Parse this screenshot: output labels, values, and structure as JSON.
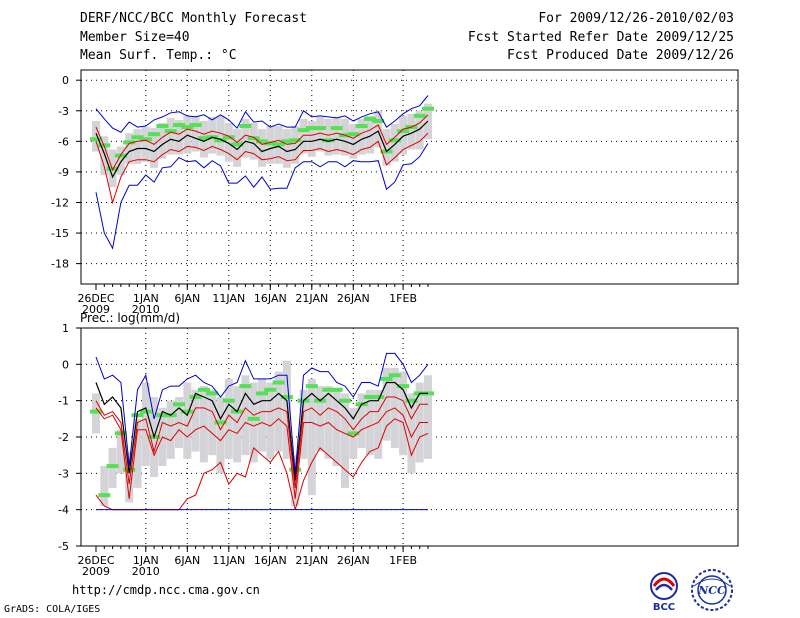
{
  "header": {
    "title": "DERF/NCC/BCC Monthly Forecast",
    "member_size": "Member Size=40",
    "variable": "Mean Surf. Temp.: °C",
    "period": "For 2009/12/26-2010/02/03",
    "started": "Fcst Started Refer Date 2009/12/25",
    "produced": "Fcst Produced Date 2009/12/26"
  },
  "footer": {
    "url": "http://cmdp.ncc.cma.gov.cn",
    "credit": "GrADS: COLA/IGES",
    "logo_bcc": "BCC",
    "logo_ncc": "NCC"
  },
  "colors": {
    "ensemble_mean": "#000000",
    "spread_inner": "#dd0000",
    "spread_outer": "#0000cc",
    "box": "#d4d4d8",
    "median": "#55e055",
    "grid": "#000000"
  },
  "chart_data": [
    {
      "type": "line",
      "title": "Mean Surf. Temp.: °C",
      "x_labels": [
        {
          "day": 0,
          "label": "26DEC",
          "sub": "2009"
        },
        {
          "day": 6,
          "label": "1JAN",
          "sub": "2010"
        },
        {
          "day": 11,
          "label": "6JAN",
          "sub": ""
        },
        {
          "day": 16,
          "label": "11JAN",
          "sub": ""
        },
        {
          "day": 21,
          "label": "16JAN",
          "sub": ""
        },
        {
          "day": 26,
          "label": "21JAN",
          "sub": ""
        },
        {
          "day": 31,
          "label": "26JAN",
          "sub": ""
        },
        {
          "day": 37,
          "label": "1FEB",
          "sub": ""
        }
      ],
      "ylim": [
        -20,
        1
      ],
      "yticks": [
        0,
        -3,
        -6,
        -9,
        -12,
        -15,
        -18
      ],
      "series": [
        {
          "name": "mean",
          "values": [
            -5.2,
            -7.2,
            -9.5,
            -8.0,
            -7.0,
            -6.7,
            -6.7,
            -7.0,
            -6.3,
            -5.8,
            -6.0,
            -5.4,
            -5.7,
            -6.0,
            -5.6,
            -5.8,
            -6.2,
            -6.8,
            -6.0,
            -6.2,
            -7.0,
            -6.7,
            -6.5,
            -7.0,
            -6.8,
            -6.0,
            -6.0,
            -5.8,
            -6.0,
            -5.8,
            -6.0,
            -6.3,
            -5.8,
            -5.5,
            -5.0,
            -7.0,
            -6.3,
            -5.5,
            -5.2,
            -4.8,
            -4.0
          ]
        },
        {
          "name": "red_upper",
          "values": [
            -4.6,
            -6.5,
            -8.8,
            -7.3,
            -6.2,
            -6.0,
            -5.9,
            -6.3,
            -5.6,
            -5.1,
            -5.3,
            -4.8,
            -5.0,
            -5.3,
            -5.0,
            -5.2,
            -5.5,
            -6.1,
            -5.4,
            -5.6,
            -6.3,
            -6.1,
            -5.9,
            -6.3,
            -6.2,
            -5.4,
            -5.4,
            -5.2,
            -5.4,
            -5.2,
            -5.4,
            -5.7,
            -5.2,
            -4.9,
            -4.4,
            -6.3,
            -5.6,
            -4.8,
            -4.6,
            -4.2,
            -3.4
          ]
        },
        {
          "name": "red_lower",
          "values": [
            -6.0,
            -8.5,
            -12.0,
            -9.5,
            -8.0,
            -7.8,
            -7.8,
            -8.0,
            -7.3,
            -6.8,
            -7.0,
            -6.5,
            -6.6,
            -6.9,
            -6.5,
            -6.8,
            -7.2,
            -7.8,
            -7.0,
            -7.2,
            -7.8,
            -7.7,
            -7.5,
            -7.9,
            -7.8,
            -6.9,
            -6.9,
            -6.7,
            -7.0,
            -6.8,
            -7.0,
            -7.3,
            -6.8,
            -6.6,
            -6.0,
            -8.3,
            -7.6,
            -6.8,
            -6.4,
            -6.0,
            -5.2
          ]
        },
        {
          "name": "blue_upper",
          "values": [
            -2.8,
            -3.8,
            -4.7,
            -5.1,
            -4.1,
            -4.6,
            -4.5,
            -3.9,
            -3.6,
            -3.2,
            -3.1,
            -3.5,
            -3.6,
            -3.4,
            -3.9,
            -3.4,
            -3.9,
            -4.7,
            -3.1,
            -4.1,
            -4.0,
            -4.6,
            -4.3,
            -4.6,
            -4.6,
            -3.0,
            -3.6,
            -3.5,
            -3.6,
            -3.7,
            -3.5,
            -4.0,
            -3.6,
            -3.3,
            -3.1,
            -4.6,
            -4.0,
            -3.3,
            -2.8,
            -2.5,
            -1.5
          ]
        },
        {
          "name": "blue_lower",
          "values": [
            -11.0,
            -15.0,
            -16.5,
            -12.0,
            -10.3,
            -10.3,
            -9.3,
            -10.0,
            -8.6,
            -8.5,
            -7.6,
            -8.0,
            -7.9,
            -8.6,
            -7.9,
            -8.4,
            -10.1,
            -10.1,
            -9.4,
            -10.5,
            -9.5,
            -10.7,
            -10.6,
            -10.6,
            -8.6,
            -8.0,
            -8.0,
            -8.5,
            -8.0,
            -8.0,
            -8.5,
            -7.9,
            -8.0,
            -8.0,
            -7.9,
            -10.7,
            -10.0,
            -8.3,
            -8.2,
            -7.5,
            -6.2
          ]
        },
        {
          "name": "box_top",
          "values": [
            -4.0,
            -5.5,
            -6.8,
            -6.5,
            -5.2,
            -4.8,
            -4.6,
            -4.7,
            -4.2,
            -3.7,
            -3.9,
            -3.5,
            -3.5,
            -4.0,
            -3.6,
            -3.5,
            -4.2,
            -4.8,
            -3.8,
            -4.2,
            -4.8,
            -4.5,
            -4.5,
            -4.8,
            -4.5,
            -3.8,
            -4.0,
            -3.6,
            -3.8,
            -3.6,
            -3.8,
            -4.3,
            -3.8,
            -3.5,
            -3.0,
            -4.8,
            -4.3,
            -3.5,
            -3.3,
            -3.0,
            -2.3
          ]
        },
        {
          "name": "box_bottom",
          "values": [
            -7.0,
            -9.3,
            -10.5,
            -9.3,
            -8.2,
            -8.2,
            -8.0,
            -8.6,
            -7.7,
            -7.3,
            -7.3,
            -7.2,
            -7.0,
            -7.6,
            -7.2,
            -7.4,
            -8.0,
            -8.5,
            -7.6,
            -7.8,
            -8.5,
            -8.2,
            -8.2,
            -8.6,
            -8.2,
            -7.2,
            -7.5,
            -7.0,
            -7.4,
            -7.3,
            -7.4,
            -7.7,
            -7.3,
            -7.2,
            -6.6,
            -8.4,
            -8.0,
            -7.3,
            -6.8,
            -6.8,
            -5.8
          ]
        },
        {
          "name": "median",
          "values": [
            -5.8,
            -6.4,
            -8.7,
            -7.4,
            -6.1,
            -5.6,
            -5.8,
            -5.3,
            -4.5,
            -5.0,
            -4.4,
            -4.6,
            -4.4,
            -5.7,
            -5.6,
            -5.9,
            -5.6,
            -6.3,
            -4.5,
            -5.7,
            -6.0,
            -6.2,
            -6.3,
            -6.0,
            -5.9,
            -4.9,
            -4.7,
            -4.7,
            -5.9,
            -4.7,
            -5.4,
            -5.3,
            -4.5,
            -3.8,
            -4.0,
            -7.0,
            -5.9,
            -5.0,
            -4.6,
            -3.5,
            -2.8
          ]
        }
      ]
    },
    {
      "type": "line",
      "title": "Prec.: log(mm/d)",
      "x_labels": [
        {
          "day": 0,
          "label": "26DEC",
          "sub": "2009"
        },
        {
          "day": 6,
          "label": "1JAN",
          "sub": "2010"
        },
        {
          "day": 11,
          "label": "6JAN",
          "sub": ""
        },
        {
          "day": 16,
          "label": "11JAN",
          "sub": ""
        },
        {
          "day": 21,
          "label": "16JAN",
          "sub": ""
        },
        {
          "day": 26,
          "label": "21JAN",
          "sub": ""
        },
        {
          "day": 31,
          "label": "26JAN",
          "sub": ""
        },
        {
          "day": 37,
          "label": "1FEB",
          "sub": ""
        }
      ],
      "ylim": [
        -5,
        1
      ],
      "yticks": [
        1,
        0,
        -1,
        -2,
        -3,
        -4,
        -5
      ],
      "series": [
        {
          "name": "mean",
          "values": [
            -0.5,
            -1.1,
            -0.9,
            -1.2,
            -3.0,
            -1.3,
            -1.2,
            -2.0,
            -1.3,
            -1.4,
            -1.2,
            -1.4,
            -0.8,
            -0.9,
            -1.0,
            -1.5,
            -1.1,
            -1.3,
            -0.8,
            -1.1,
            -1.0,
            -1.0,
            -0.8,
            -1.0,
            -3.2,
            -1.0,
            -0.8,
            -1.0,
            -0.8,
            -1.0,
            -1.2,
            -1.5,
            -1.1,
            -1.0,
            -1.0,
            -0.5,
            -0.5,
            -0.7,
            -1.2,
            -0.8,
            -0.8
          ]
        },
        {
          "name": "red_upper",
          "values": [
            -1.0,
            -1.4,
            -1.3,
            -1.6,
            -3.3,
            -1.6,
            -1.5,
            -2.4,
            -1.6,
            -1.7,
            -1.6,
            -1.7,
            -1.2,
            -1.2,
            -1.3,
            -1.8,
            -1.4,
            -1.6,
            -1.2,
            -1.4,
            -1.3,
            -1.3,
            -1.2,
            -1.3,
            -3.4,
            -1.3,
            -1.2,
            -1.4,
            -1.2,
            -1.3,
            -1.5,
            -1.8,
            -1.5,
            -1.3,
            -1.3,
            -0.9,
            -0.9,
            -1.0,
            -1.5,
            -1.1,
            -1.1
          ]
        },
        {
          "name": "red_lower",
          "values": [
            -1.2,
            -1.5,
            -1.4,
            -1.8,
            -3.7,
            -1.8,
            -1.8,
            -2.5,
            -2.0,
            -2.1,
            -1.8,
            -2.0,
            -1.8,
            -1.7,
            -1.9,
            -2.1,
            -1.8,
            -1.9,
            -1.6,
            -1.7,
            -1.6,
            -1.7,
            -1.5,
            -1.7,
            -3.7,
            -1.6,
            -1.6,
            -1.7,
            -1.6,
            -1.8,
            -1.9,
            -2.0,
            -1.8,
            -1.7,
            -1.6,
            -1.3,
            -1.2,
            -1.4,
            -2.0,
            -1.6,
            -1.6
          ]
        },
        {
          "name": "blue_upper",
          "values": [
            0.2,
            -0.4,
            -0.3,
            -0.5,
            -2.8,
            -0.7,
            -0.3,
            -1.5,
            -0.7,
            -0.6,
            -0.6,
            -0.4,
            -0.3,
            -0.5,
            -0.6,
            -0.9,
            -0.6,
            -0.5,
            0.1,
            -0.4,
            -0.4,
            -0.4,
            -0.3,
            -0.3,
            -3.0,
            -0.3,
            -0.1,
            -0.2,
            -0.2,
            -0.5,
            -0.6,
            -0.9,
            -0.5,
            -0.5,
            -0.6,
            0.3,
            0.3,
            0.0,
            -0.5,
            -0.3,
            0.0
          ]
        },
        {
          "name": "box_top",
          "values": [
            -0.8,
            -2.8,
            -2.3,
            -1.8,
            -2.4,
            -1.5,
            -0.5,
            -0.9,
            -1.2,
            -1.0,
            -0.9,
            -0.5,
            -0.7,
            -0.6,
            -0.7,
            -0.9,
            -0.4,
            -0.6,
            -0.3,
            -0.5,
            -0.4,
            -0.5,
            -0.2,
            0.1,
            -2.5,
            -0.7,
            -0.4,
            -0.6,
            -0.6,
            -0.7,
            -0.8,
            -1.2,
            -0.8,
            -0.7,
            -0.7,
            -0.1,
            -0.1,
            -0.2,
            -0.8,
            -0.5,
            -0.3
          ]
        },
        {
          "name": "box_bottom",
          "values": [
            -1.9,
            -3.9,
            -3.4,
            -3.0,
            -3.8,
            -3.4,
            -2.8,
            -3.1,
            -2.8,
            -2.6,
            -2.3,
            -2.6,
            -2.4,
            -2.7,
            -2.5,
            -3.0,
            -2.6,
            -2.7,
            -2.5,
            -2.7,
            -2.4,
            -2.6,
            -2.4,
            -2.6,
            -3.9,
            -2.6,
            -3.6,
            -2.4,
            -2.6,
            -2.8,
            -3.4,
            -2.6,
            -2.3,
            -2.5,
            -2.6,
            -2.1,
            -2.3,
            -2.5,
            -3.0,
            -2.7,
            -2.6
          ]
        },
        {
          "name": "median",
          "values": [
            -1.3,
            -3.6,
            -2.8,
            -1.9,
            -2.9,
            -1.4,
            -1.3,
            -2.0,
            -1.4,
            -1.4,
            -1.1,
            -1.3,
            -0.9,
            -0.7,
            -0.8,
            -1.6,
            -1.0,
            -1.3,
            -0.6,
            -1.5,
            -0.8,
            -0.7,
            -0.5,
            -0.9,
            -2.9,
            -1.0,
            -0.6,
            -1.0,
            -0.7,
            -0.7,
            -1.0,
            -1.9,
            -1.1,
            -0.9,
            -0.9,
            -0.4,
            -0.3,
            -0.6,
            -1.0,
            -0.8,
            -0.8
          ]
        }
      ],
      "reference_lines": [
        {
          "name": "red_lowest",
          "points": [
            [
              0,
              -3.6
            ],
            [
              1,
              -3.9
            ],
            [
              2,
              -4.0
            ],
            [
              3,
              -4.0
            ],
            [
              4,
              -4.0
            ],
            [
              5,
              -4.0
            ],
            [
              6,
              -4.0
            ],
            [
              7,
              -4.0
            ],
            [
              8,
              -4.0
            ],
            [
              9,
              -4.0
            ],
            [
              10,
              -4.0
            ],
            [
              11,
              -3.7
            ],
            [
              12,
              -3.6
            ],
            [
              13,
              -3.0
            ],
            [
              14,
              -2.9
            ],
            [
              15,
              -2.7
            ],
            [
              16,
              -3.3
            ],
            [
              17,
              -3.0
            ],
            [
              18,
              -3.1
            ],
            [
              19,
              -2.3
            ],
            [
              20,
              -2.5
            ],
            [
              21,
              -2.7
            ],
            [
              22,
              -2.4
            ],
            [
              23,
              -3.0
            ],
            [
              24,
              -4.0
            ],
            [
              25,
              -3.2
            ],
            [
              26,
              -2.7
            ],
            [
              27,
              -2.3
            ],
            [
              28,
              -2.5
            ],
            [
              29,
              -2.7
            ],
            [
              30,
              -2.9
            ],
            [
              31,
              -3.1
            ],
            [
              32,
              -2.7
            ],
            [
              33,
              -2.4
            ],
            [
              34,
              -2.3
            ],
            [
              35,
              -1.7
            ],
            [
              36,
              -1.5
            ],
            [
              37,
              -1.6
            ],
            [
              38,
              -2.5
            ],
            [
              39,
              -2.0
            ],
            [
              40,
              -1.9
            ]
          ]
        },
        {
          "name": "blue_floor",
          "value": -4.0
        }
      ]
    }
  ]
}
